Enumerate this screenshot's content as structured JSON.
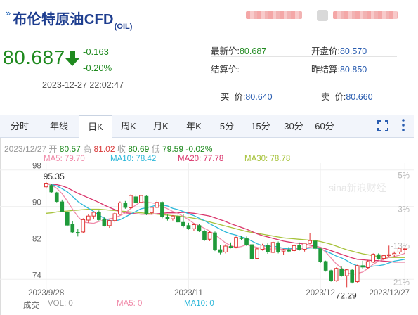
{
  "header": {
    "mark": "»",
    "title": "布伦特原油CFD",
    "title_sub": "(OIL)"
  },
  "price": {
    "last": "80.687",
    "change": "-0.163",
    "change_pct": "-0.20%",
    "timestamp": "2023-12-27 22:02:47",
    "direction_icon": "down-arrow-icon",
    "color": "#1f8a1f"
  },
  "quotes": {
    "latest_label": "最新价:",
    "latest": "80.687",
    "open_label": "开盘价:",
    "open": "80.570",
    "settle_label": "结算价:",
    "settle": "--",
    "prev_settle_label": "昨结算:",
    "prev_settle": "80.850",
    "bid_label": "买  价:",
    "bid": "80.640",
    "ask_label": "卖  价:",
    "ask": "80.660"
  },
  "tabs": [
    "分时",
    "年线",
    "日K",
    "周K",
    "月K",
    "年K",
    "5分",
    "15分",
    "30分",
    "60分"
  ],
  "active_tab": "日K",
  "toolbar": {
    "fullscreen_icon": "fullscreen-icon",
    "more_icon": "more-icon"
  },
  "info": {
    "date": "2023/12/27",
    "open_label": "开",
    "open": "80.57",
    "high_label": "高",
    "high": "81.02",
    "close_label": "收",
    "close": "80.69",
    "low_label": "低",
    "low": "79.59",
    "change": "-0.02%"
  },
  "ma": {
    "ma5": "MA5: 79.70",
    "ma10": "MA10: 78.42",
    "ma20": "MA20: 77.78",
    "ma30": "MA30: 78.78"
  },
  "volume_row": {
    "label": "成交",
    "vol": "VOL: 0",
    "ma5": "MA5: 0",
    "ma10": "MA10: 0"
  },
  "colors": {
    "up": "#e03333",
    "down": "#1f9a3a",
    "ma5": "#f08aa9",
    "ma10": "#2bb7d9",
    "ma20": "#d9346b",
    "ma30": "#a6c23a",
    "accent": "#2a5db0"
  },
  "chart_data": {
    "type": "candlestick",
    "y_ticks": [
      "98",
      "90",
      "82",
      "74"
    ],
    "y_tick_values": [
      98,
      90,
      82,
      74
    ],
    "right_ticks": [
      "5%",
      "-3%",
      "-13%",
      "-21%"
    ],
    "x_ticks": [
      "2023/9/28",
      "2023/11",
      "2023/12",
      "2023/12/27"
    ],
    "ylim": [
      70.5,
      99.5
    ],
    "annotations": {
      "max_label": "95.35",
      "max": 95.35,
      "min_label": "72.29",
      "min": 72.29
    },
    "watermark": "sina新浪财经",
    "candles": [
      [
        94.3,
        95.35,
        93.9,
        95.1
      ],
      [
        94.6,
        94.9,
        92.9,
        93.2
      ],
      [
        93.0,
        93.2,
        90.9,
        91.1
      ],
      [
        91.0,
        91.5,
        88.7,
        88.9
      ],
      [
        88.7,
        88.9,
        85.6,
        85.9
      ],
      [
        86.1,
        86.7,
        84.1,
        84.4
      ],
      [
        84.3,
        85.1,
        83.4,
        84.2
      ],
      [
        84.4,
        87.4,
        84.2,
        87.1
      ],
      [
        87.0,
        88.3,
        86.4,
        87.9
      ],
      [
        87.9,
        88.9,
        87.3,
        88.7
      ],
      [
        88.7,
        89.1,
        86.9,
        87.1
      ],
      [
        87.2,
        87.6,
        85.6,
        85.8
      ],
      [
        85.8,
        87.1,
        85.3,
        86.9
      ],
      [
        86.9,
        88.7,
        86.5,
        88.4
      ],
      [
        88.3,
        91.1,
        88.1,
        90.8
      ],
      [
        90.7,
        91.2,
        89.5,
        89.8
      ],
      [
        89.7,
        92.6,
        89.5,
        92.4
      ],
      [
        92.1,
        92.6,
        90.7,
        90.9
      ],
      [
        90.9,
        92.5,
        90.7,
        92.4
      ],
      [
        92.2,
        92.4,
        88.1,
        88.4
      ],
      [
        88.6,
        89.9,
        88.2,
        89.8
      ],
      [
        89.8,
        91.3,
        89.6,
        90.9
      ],
      [
        90.9,
        91.1,
        87.4,
        87.7
      ],
      [
        87.6,
        88.2,
        86.9,
        87.3
      ],
      [
        87.3,
        88.1,
        86.9,
        87.9
      ],
      [
        87.8,
        88.7,
        86.4,
        86.6
      ],
      [
        86.5,
        88.3,
        85.4,
        85.7
      ],
      [
        85.8,
        86.4,
        84.9,
        85.1
      ],
      [
        85.1,
        86.3,
        84.6,
        86.0
      ],
      [
        85.8,
        86.1,
        84.4,
        84.6
      ],
      [
        84.6,
        84.9,
        82.4,
        82.7
      ],
      [
        82.8,
        84.6,
        82.4,
        84.3
      ],
      [
        84.2,
        84.5,
        80.2,
        80.6
      ],
      [
        80.5,
        81.6,
        79.5,
        79.9
      ],
      [
        80.0,
        81.7,
        79.7,
        81.3
      ],
      [
        81.2,
        82.1,
        80.8,
        81.0
      ],
      [
        81.1,
        83.4,
        80.8,
        83.2
      ],
      [
        83.1,
        83.6,
        82.6,
        83.0
      ],
      [
        82.9,
        83.4,
        81.3,
        81.6
      ],
      [
        81.6,
        81.9,
        78.2,
        78.5
      ],
      [
        78.6,
        80.9,
        78.4,
        80.7
      ],
      [
        80.6,
        81.8,
        80.3,
        81.5
      ],
      [
        81.4,
        81.9,
        79.6,
        80.0
      ],
      [
        79.9,
        82.4,
        79.7,
        82.1
      ],
      [
        82.0,
        82.3,
        79.7,
        80.1
      ],
      [
        80.2,
        80.7,
        79.4,
        80.5
      ],
      [
        80.5,
        81.1,
        79.9,
        80.2
      ],
      [
        80.3,
        81.7,
        79.9,
        81.4
      ],
      [
        81.5,
        82.1,
        80.3,
        80.6
      ],
      [
        80.6,
        82.0,
        80.1,
        81.9
      ],
      [
        81.9,
        84.1,
        81.7,
        82.5
      ],
      [
        82.4,
        82.7,
        80.5,
        80.8
      ],
      [
        80.7,
        81.0,
        77.6,
        77.9
      ],
      [
        77.9,
        78.1,
        75.7,
        76.0
      ],
      [
        75.9,
        76.1,
        73.5,
        73.8
      ],
      [
        73.7,
        76.6,
        73.5,
        76.4
      ],
      [
        76.3,
        76.8,
        74.6,
        74.9
      ],
      [
        74.8,
        76.3,
        72.29,
        76.1
      ],
      [
        76.0,
        76.2,
        73.1,
        73.4
      ],
      [
        73.5,
        77.2,
        73.3,
        77.0
      ],
      [
        77.0,
        78.1,
        76.2,
        76.7
      ],
      [
        76.6,
        78.3,
        76.2,
        77.9
      ],
      [
        77.8,
        79.7,
        77.6,
        79.5
      ],
      [
        79.4,
        79.7,
        78.3,
        78.6
      ],
      [
        78.6,
        79.4,
        78.2,
        79.2
      ],
      [
        79.2,
        81.4,
        78.9,
        79.4
      ],
      [
        79.4,
        80.1,
        78.9,
        79.7
      ],
      [
        80.0,
        81.0,
        79.6,
        80.8
      ],
      [
        80.57,
        81.02,
        79.59,
        80.69
      ]
    ],
    "ma5_series": [
      95.0,
      94.7,
      94.0,
      92.8,
      91.2,
      89.4,
      87.8,
      86.6,
      86.4,
      86.3,
      86.7,
      87.0,
      87.3,
      87.5,
      88.0,
      88.6,
      89.5,
      90.3,
      91.1,
      90.9,
      90.8,
      90.6,
      90.0,
      89.5,
      88.9,
      88.5,
      87.8,
      87.1,
      86.3,
      85.8,
      85.2,
      84.6,
      83.8,
      82.9,
      82.0,
      81.4,
      81.0,
      81.2,
      81.6,
      81.3,
      81.0,
      80.8,
      80.6,
      80.7,
      80.7,
      80.6,
      80.5,
      80.7,
      80.6,
      80.8,
      81.1,
      81.3,
      80.9,
      80.0,
      78.7,
      77.4,
      76.5,
      75.5,
      75.1,
      75.3,
      75.6,
      76.4,
      77.3,
      78.0,
      78.4,
      78.8,
      79.0,
      79.3,
      79.7
    ],
    "ma10_series": [
      95.0,
      94.8,
      94.5,
      93.9,
      93.2,
      92.2,
      91.1,
      90.3,
      89.6,
      88.9,
      88.1,
      87.4,
      86.9,
      86.8,
      87.1,
      87.7,
      88.3,
      88.9,
      89.5,
      89.7,
      90.0,
      90.3,
      90.3,
      90.1,
      89.6,
      89.3,
      88.9,
      88.4,
      88.0,
      87.4,
      86.9,
      86.2,
      85.6,
      85.0,
      84.4,
      84.0,
      83.7,
      83.3,
      83.0,
      82.4,
      81.8,
      81.4,
      81.2,
      81.3,
      81.1,
      80.8,
      80.7,
      80.8,
      80.7,
      80.7,
      80.9,
      80.9,
      80.7,
      80.2,
      79.7,
      79.1,
      78.7,
      78.1,
      77.4,
      77.0,
      76.8,
      76.7,
      76.9,
      77.0,
      77.2,
      77.6,
      78.0,
      78.2,
      78.4
    ],
    "ma20_series": [
      95.0,
      94.9,
      94.8,
      94.5,
      94.1,
      93.5,
      92.9,
      92.4,
      91.9,
      91.4,
      90.9,
      90.3,
      89.8,
      89.3,
      88.9,
      88.6,
      88.5,
      88.4,
      88.3,
      88.3,
      88.3,
      88.4,
      88.5,
      88.6,
      88.6,
      88.6,
      88.7,
      88.6,
      88.5,
      88.3,
      88.1,
      87.9,
      87.5,
      87.1,
      86.7,
      86.2,
      85.8,
      85.4,
      85.0,
      84.5,
      84.0,
      83.6,
      83.3,
      83.0,
      82.7,
      82.4,
      82.2,
      82.0,
      81.9,
      81.7,
      81.5,
      81.3,
      81.0,
      80.7,
      80.3,
      79.9,
      79.5,
      79.1,
      78.7,
      78.4,
      78.3,
      78.2,
      78.1,
      78.1,
      78.0,
      77.9,
      77.8,
      77.8,
      77.8
    ],
    "ma30_series": [
      88.5,
      88.6,
      88.8,
      88.9,
      89.0,
      89.1,
      89.2,
      89.3,
      89.4,
      89.4,
      89.4,
      89.3,
      89.2,
      89.1,
      89.0,
      88.9,
      88.8,
      88.7,
      88.6,
      88.5,
      88.4,
      88.3,
      88.2,
      88.1,
      88.0,
      87.9,
      87.8,
      87.6,
      87.4,
      87.2,
      86.9,
      86.6,
      86.3,
      86.0,
      85.7,
      85.4,
      85.1,
      84.8,
      84.5,
      84.3,
      84.1,
      83.9,
      83.7,
      83.5,
      83.3,
      83.1,
      83.0,
      82.9,
      82.8,
      82.7,
      82.6,
      82.5,
      82.3,
      82.0,
      81.7,
      81.3,
      80.9,
      80.5,
      80.2,
      79.9,
      79.6,
      79.4,
      79.2,
      79.0,
      78.9,
      78.8,
      78.8,
      78.8,
      78.8
    ]
  }
}
